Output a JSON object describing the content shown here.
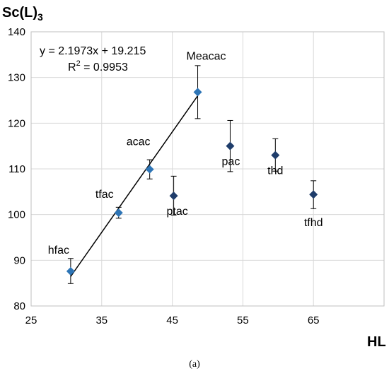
{
  "chart_data": {
    "type": "scatter",
    "xlabel": "HL",
    "ylabel_main": "Sc(L)",
    "ylabel_sub": "3",
    "xlim": [
      25,
      75
    ],
    "ylim": [
      80,
      140
    ],
    "xticks": [
      25,
      35,
      45,
      55,
      65
    ],
    "yticks": [
      80,
      90,
      100,
      110,
      120,
      130,
      140
    ],
    "grid": true,
    "points": [
      {
        "label": "hfac",
        "x": 30.6,
        "y": 87.6,
        "err_low": 84.9,
        "err_high": 90.4,
        "color": "#2e75b6"
      },
      {
        "label": "tfac",
        "x": 37.4,
        "y": 100.4,
        "err_low": 99.2,
        "err_high": 101.6,
        "color": "#2e75b6"
      },
      {
        "label": "acac",
        "x": 41.8,
        "y": 109.9,
        "err_low": 107.8,
        "err_high": 112.0,
        "color": "#2e75b6"
      },
      {
        "label": "Meacac",
        "x": 48.6,
        "y": 126.8,
        "err_low": 121.0,
        "err_high": 132.6,
        "color": "#2e75b6"
      },
      {
        "label": "ptac",
        "x": 45.2,
        "y": 104.1,
        "err_low": 99.9,
        "err_high": 108.4,
        "color": "#1f3d6b"
      },
      {
        "label": "pac",
        "x": 53.2,
        "y": 115.0,
        "err_low": 109.4,
        "err_high": 120.6,
        "color": "#1f3d6b"
      },
      {
        "label": "thd",
        "x": 59.6,
        "y": 113.0,
        "err_low": 109.5,
        "err_high": 116.6,
        "color": "#1f3d6b"
      },
      {
        "label": "tfhd",
        "x": 65.0,
        "y": 104.4,
        "err_low": 101.3,
        "err_high": 107.4,
        "color": "#1f3d6b"
      }
    ],
    "trendline": {
      "slope": 2.1973,
      "intercept": 19.215,
      "x_start": 30.6,
      "x_end": 48.6
    },
    "equation": "y = 2.1973x + 19.215",
    "r2_label": "R",
    "r2_sup": "2",
    "r2_value": " = 0.9953",
    "caption": "(a)"
  }
}
